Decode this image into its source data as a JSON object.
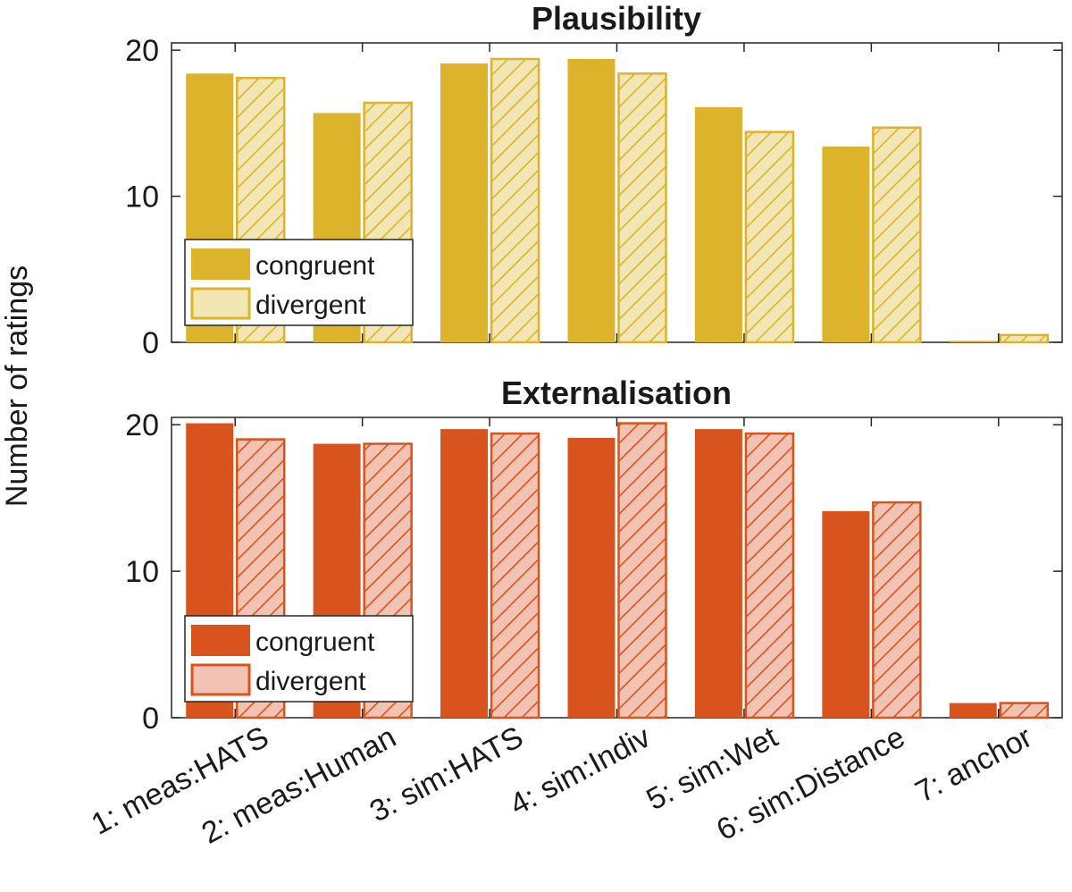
{
  "shared": {
    "ylabel": "Number of ratings",
    "categories": [
      "1: meas:HATS",
      "2: meas:Human",
      "3: sim:HATS",
      "4: sim:Indiv",
      "5: sim:Wet",
      "6: sim:Distance",
      "7: anchor"
    ]
  },
  "chart_data": [
    {
      "type": "bar",
      "title": "Plausibility",
      "ylim": [
        0,
        20.5
      ],
      "yticks": [
        0,
        10,
        20
      ],
      "legend_position": "left",
      "colors": {
        "main": "#DDB32B",
        "light": "#F2E6B5"
      },
      "series": [
        {
          "name": "congruent",
          "values": [
            18.4,
            15.7,
            19.1,
            19.4,
            16.1,
            13.4,
            0.1
          ]
        },
        {
          "name": "divergent",
          "values": [
            18.1,
            16.4,
            19.4,
            18.4,
            14.4,
            14.7,
            0.5
          ]
        }
      ]
    },
    {
      "type": "bar",
      "title": "Externalisation",
      "ylim": [
        0,
        20.5
      ],
      "yticks": [
        0,
        10,
        20
      ],
      "legend_position": "left",
      "colors": {
        "main": "#D9531E",
        "light": "#F2C3B2"
      },
      "series": [
        {
          "name": "congruent",
          "values": [
            20.1,
            18.7,
            19.7,
            19.1,
            19.7,
            14.1,
            1.0
          ]
        },
        {
          "name": "divergent",
          "values": [
            19.0,
            18.7,
            19.4,
            20.1,
            19.4,
            14.7,
            1.0
          ]
        }
      ]
    }
  ]
}
